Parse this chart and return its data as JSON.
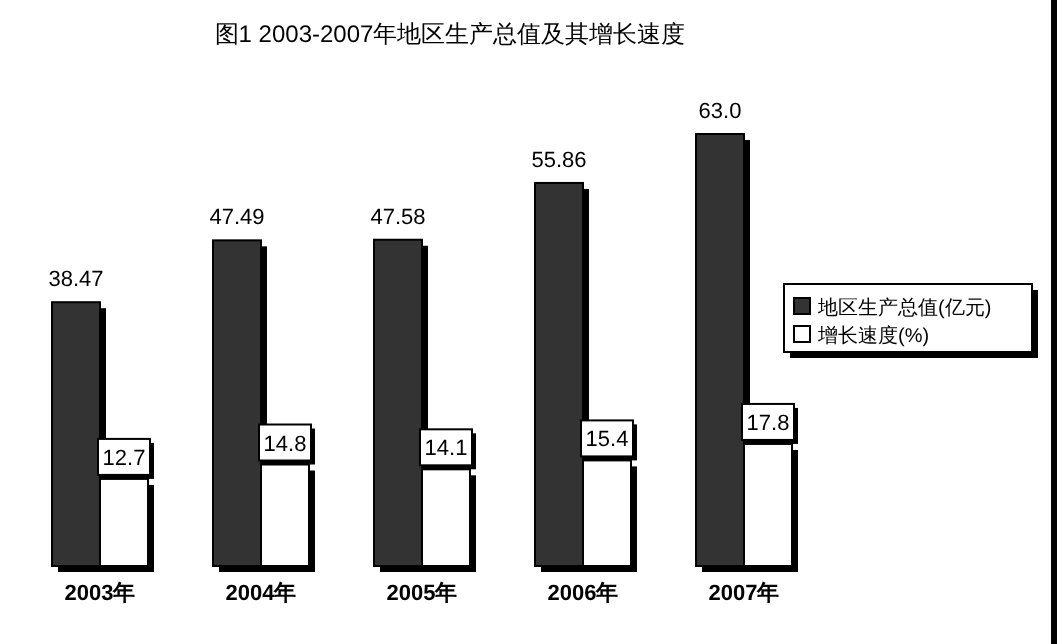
{
  "chart_data": {
    "type": "bar",
    "title": "图1  2003-2007年地区生产总值及其增长速度",
    "categories": [
      "2003年",
      "2004年",
      "2005年",
      "2006年",
      "2007年"
    ],
    "series": [
      {
        "name": "地区生产总值(亿元)",
        "color": "#333333",
        "values": [
          38.47,
          47.49,
          47.58,
          55.86,
          63.0
        ],
        "value_labels": [
          "38.47",
          "47.49",
          "47.58",
          "55.86",
          "63.0"
        ]
      },
      {
        "name": "增长速度(%)",
        "color": "#ffffff",
        "values": [
          12.7,
          14.8,
          14.1,
          15.4,
          17.8
        ],
        "value_labels": [
          "12.7",
          "14.8",
          "14.1",
          "15.4",
          "17.8"
        ]
      }
    ],
    "legend": "right",
    "grid": false
  }
}
